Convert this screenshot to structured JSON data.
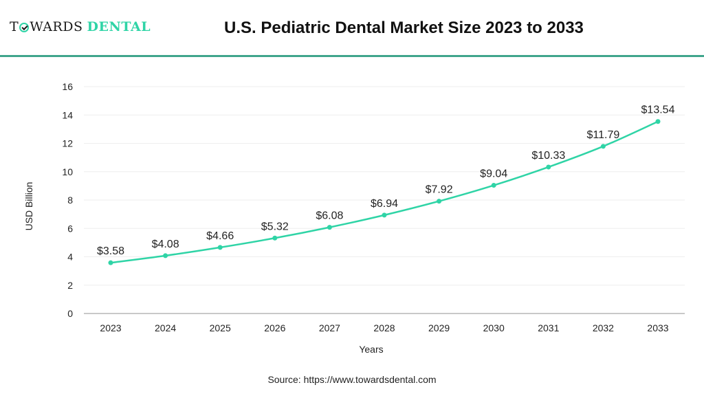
{
  "header": {
    "logo_part1_pre": "T",
    "logo_part1_post": "WARDS",
    "logo_part2": "DENTAL",
    "logo_icon": "checkmark-circle-icon",
    "title": "U.S. Pediatric Dental Market Size 2023 to 2033"
  },
  "colors": {
    "line": "#2fd4a6",
    "rule": "#3fa58c",
    "grid": "#eeeeee",
    "axis": "#c8c8c8"
  },
  "chart_data": {
    "type": "line",
    "title": "U.S. Pediatric Dental Market Size 2023 to 2033",
    "xlabel": "Years",
    "ylabel": "USD Billion",
    "categories": [
      "2023",
      "2024",
      "2025",
      "2026",
      "2027",
      "2028",
      "2029",
      "2030",
      "2031",
      "2032",
      "2033"
    ],
    "series": [
      {
        "name": "U.S. Pediatric Dental Market Size",
        "values": [
          3.58,
          4.08,
          4.66,
          5.32,
          6.08,
          6.94,
          7.92,
          9.04,
          10.33,
          11.79,
          13.54
        ],
        "labels": [
          "$3.58",
          "$4.08",
          "$4.66",
          "$5.32",
          "$6.08",
          "$6.94",
          "$7.92",
          "$9.04",
          "$10.33",
          "$11.79",
          "$13.54"
        ]
      }
    ],
    "ylim": [
      0,
      16
    ],
    "yticks": [
      0,
      2,
      4,
      6,
      8,
      10,
      12,
      14,
      16
    ],
    "grid": true,
    "legend": "none"
  },
  "footer": {
    "source": "Source: https://www.towardsdental.com"
  }
}
